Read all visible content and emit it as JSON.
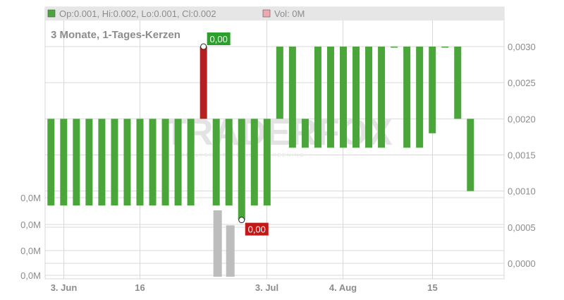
{
  "legend": {
    "ohlc": "Op:0.001, Hi:0.002, Lo:0.001, Cl:0.002",
    "volume": "Vol: 0M"
  },
  "colors": {
    "up": "#4aa63a",
    "down": "#b52020",
    "volume": "#bdbdbd",
    "grid": "#d9d9d9",
    "header_bg": "#e6e6e6",
    "label_text": "#8c8c8c",
    "watermark": "#e3e3e3"
  },
  "watermark": {
    "text": "TRADERFOX",
    "subtitle": "ANALYSE · TRADING · SCREENING"
  },
  "chart_data": {
    "type": "candlestick",
    "title": "3 Monate, 1-Tages-Kerzen",
    "price_axis": {
      "range": [
        0,
        0.0033
      ],
      "ticks": [
        "0,0030",
        "0,0025",
        "0,0020",
        "0,0015",
        "0,0010",
        "0,0005",
        "0,0000"
      ],
      "tick_values": [
        0.003,
        0.0025,
        0.002,
        0.0015,
        0.001,
        0.0005,
        0.0
      ]
    },
    "volume_axis": {
      "ticks": [
        "0,0M",
        "0,0M",
        "0,0M",
        "0,0M"
      ]
    },
    "x_axis": {
      "labels": [
        "3. Jun",
        "16",
        "3. Jul",
        "4. Aug",
        "15"
      ],
      "label_candle_index": [
        1,
        7,
        17,
        23,
        30
      ]
    },
    "grid": true,
    "candles": [
      {
        "open": 0.0008,
        "close": 0.002
      },
      {
        "open": 0.0008,
        "close": 0.002
      },
      {
        "open": 0.0008,
        "close": 0.002
      },
      {
        "open": 0.0008,
        "close": 0.002
      },
      {
        "open": 0.0008,
        "close": 0.002
      },
      {
        "open": 0.0008,
        "close": 0.002
      },
      {
        "open": 0.0008,
        "close": 0.002
      },
      {
        "open": 0.0008,
        "close": 0.002
      },
      {
        "open": 0.0008,
        "close": 0.002
      },
      {
        "open": 0.0008,
        "close": 0.002
      },
      {
        "open": 0.0008,
        "close": 0.002
      },
      {
        "open": 0.0008,
        "close": 0.002
      },
      {
        "open": 0.003,
        "close": 0.002
      },
      {
        "open": 0.0008,
        "close": 0.002
      },
      {
        "open": 0.0008,
        "close": 0.002
      },
      {
        "open": 0.0006,
        "close": 0.002
      },
      {
        "open": 0.0008,
        "close": 0.002
      },
      {
        "open": 0.0008,
        "close": 0.002
      },
      {
        "open": 0.002,
        "close": 0.003
      },
      {
        "open": 0.0016,
        "close": 0.003
      },
      {
        "open": 0.0016,
        "close": 0.002
      },
      {
        "open": 0.0016,
        "close": 0.003
      },
      {
        "open": 0.0016,
        "close": 0.003
      },
      {
        "open": 0.0016,
        "close": 0.003
      },
      {
        "open": 0.0016,
        "close": 0.003
      },
      {
        "open": 0.0016,
        "close": 0.003
      },
      {
        "open": 0.0016,
        "close": 0.003
      },
      {
        "open": 0.003,
        "close": 0.003
      },
      {
        "open": 0.0016,
        "close": 0.003
      },
      {
        "open": 0.0016,
        "close": 0.003
      },
      {
        "open": 0.0018,
        "close": 0.003
      },
      {
        "open": 0.003,
        "close": 0.003
      },
      {
        "open": 0.002,
        "close": 0.003
      },
      {
        "open": 0.001,
        "close": 0.002
      }
    ],
    "volumes": [
      {
        "index": 13,
        "value": 0.75
      },
      {
        "index": 14,
        "value": 0.58
      }
    ],
    "annotations": [
      {
        "label": "0,00",
        "candle_index": 12,
        "price": 0.003,
        "kind": "high"
      },
      {
        "label": "0,00",
        "candle_index": 15,
        "price": 0.0006,
        "kind": "low"
      }
    ]
  }
}
